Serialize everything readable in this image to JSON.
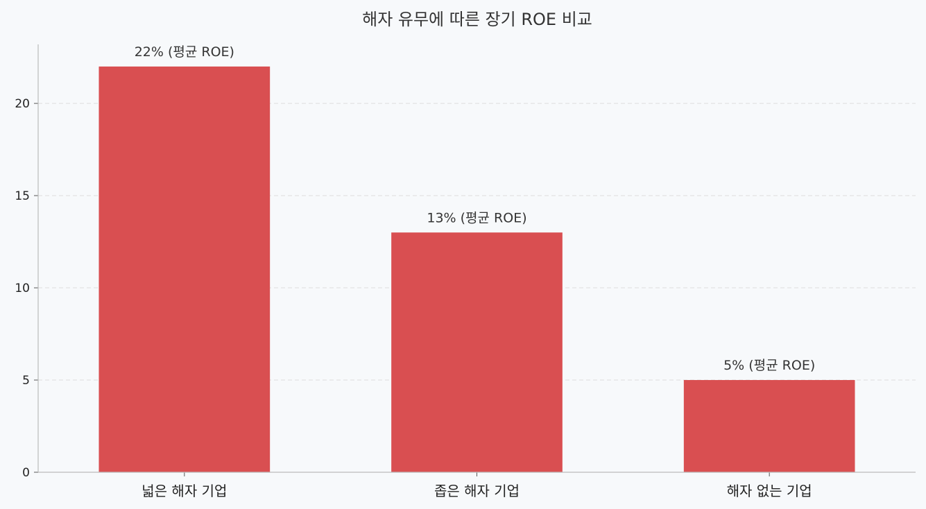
{
  "chart_data": {
    "type": "bar",
    "title": "해자 유무에 따른 장기 ROE 비교",
    "xlabel": "",
    "ylabel": "",
    "categories": [
      "넓은 해자 기업",
      "좁은 해자 기업",
      "해자 없는 기업"
    ],
    "values": [
      22,
      13,
      5
    ],
    "data_labels": [
      "22% (평균 ROE)",
      "13% (평균 ROE)",
      "5% (평균 ROE)"
    ],
    "ylim": [
      0,
      23.2
    ],
    "yticks": [
      0,
      5,
      10,
      15,
      20
    ],
    "ytick_labels": [
      "0",
      "5",
      "10",
      "15",
      "20"
    ],
    "grid": "y dashed",
    "legend": "none",
    "colors": {
      "bar": "#d94f51",
      "background": "#f7f9fb",
      "grid": "#dddddd",
      "axis": "#bbbbbb"
    }
  }
}
